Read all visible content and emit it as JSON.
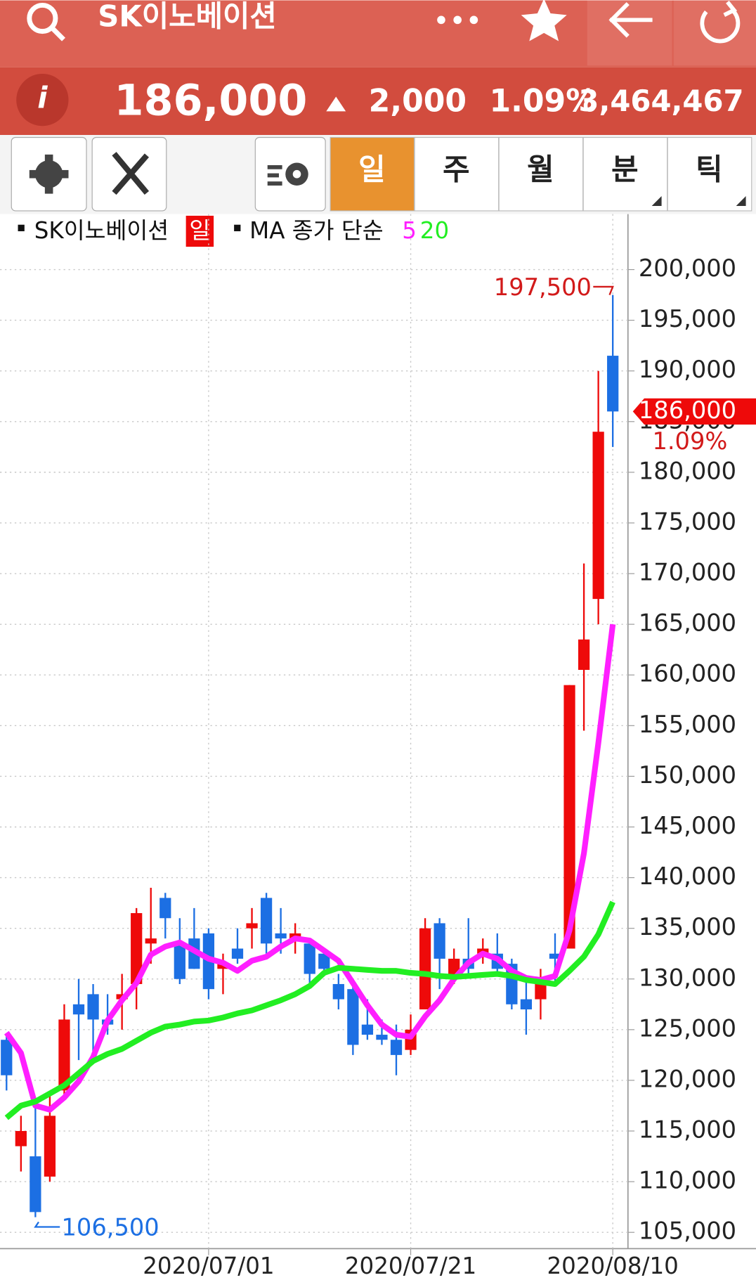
{
  "header": {
    "title": "SK이노베이션",
    "info": "i",
    "price": "186,000",
    "change": "2,000",
    "change_pct": "1.09%",
    "volume": "3,464,467"
  },
  "tabs": [
    "일",
    "주",
    "월",
    "분",
    "틱"
  ],
  "chart_data": {
    "type": "candlestick",
    "legend": {
      "stock": "SK이노베이션",
      "period": "일",
      "ma": "MA 종가 단순"
    },
    "categories": [
      null,
      null,
      null,
      null,
      null,
      null,
      null,
      null,
      null,
      null,
      null,
      null,
      null,
      null,
      "2020/07/01",
      null,
      null,
      null,
      null,
      null,
      null,
      null,
      null,
      null,
      null,
      null,
      null,
      null,
      "2020/07/21",
      null,
      null,
      null,
      null,
      null,
      null,
      null,
      null,
      null,
      null,
      null,
      null,
      null,
      "2020/08/10"
    ],
    "open": [
      124000,
      113500,
      112500,
      110500,
      119000,
      127500,
      128500,
      126000,
      128000,
      129500,
      133500,
      138000,
      133500,
      134000,
      134500,
      131000,
      133000,
      135000,
      138000,
      134500,
      134000,
      133500,
      132500,
      129500,
      129000,
      125500,
      124500,
      124000,
      123000,
      127000,
      135500,
      130000,
      132000,
      132500,
      132500,
      131500,
      128000,
      128000,
      132500,
      133000,
      160500,
      167500,
      191500
    ],
    "high": [
      124500,
      116500,
      118000,
      118500,
      127500,
      130000,
      129500,
      128500,
      130500,
      137000,
      139000,
      138500,
      136000,
      137000,
      135000,
      132500,
      135000,
      137000,
      138500,
      137000,
      135500,
      134000,
      133000,
      130500,
      129500,
      128000,
      126000,
      125500,
      126500,
      136000,
      136000,
      133000,
      136000,
      134000,
      134500,
      132000,
      130000,
      131000,
      134500,
      159000,
      171000,
      190000,
      197500
    ],
    "low": [
      119000,
      111000,
      106500,
      110000,
      118500,
      122000,
      122500,
      124500,
      125000,
      127000,
      131500,
      134000,
      129500,
      131000,
      128000,
      128500,
      131500,
      133000,
      132500,
      132500,
      132500,
      129500,
      130500,
      127000,
      122500,
      124000,
      123500,
      120500,
      122500,
      127000,
      129000,
      129500,
      130500,
      131500,
      130500,
      127000,
      124500,
      126000,
      129500,
      133000,
      154500,
      165000,
      182500
    ],
    "close": [
      120500,
      115000,
      107000,
      116500,
      126000,
      126500,
      126000,
      125500,
      128500,
      136500,
      134000,
      136000,
      130000,
      131000,
      129000,
      131500,
      132000,
      135500,
      133500,
      134000,
      134500,
      130500,
      131000,
      128000,
      123500,
      124500,
      124000,
      122500,
      125000,
      135000,
      132000,
      132000,
      131000,
      133000,
      131000,
      127500,
      127000,
      129500,
      132000,
      159000,
      163500,
      184000,
      186000
    ],
    "up_color": "#ee0a0a",
    "down_color": "#1c6fe3",
    "series": [
      {
        "name": "5",
        "color": "#ff1fff",
        "values": [
          124700,
          122700,
          117500,
          117100,
          118300,
          119900,
          122300,
          125900,
          127900,
          129600,
          132400,
          133200,
          133600,
          132800,
          132000,
          131600,
          130800,
          131800,
          132200,
          133200,
          134000,
          133800,
          132800,
          131800,
          129600,
          127400,
          125500,
          124500,
          124300,
          126300,
          127900,
          130000,
          131600,
          132500,
          132000,
          130800,
          130100,
          129900,
          130300,
          134800,
          142400,
          153300,
          165000
        ]
      },
      {
        "name": "20",
        "color": "#22ee22",
        "values": [
          116300,
          117500,
          117900,
          118700,
          119500,
          120700,
          121900,
          122600,
          123100,
          123900,
          124700,
          125300,
          125500,
          125800,
          125900,
          126200,
          126600,
          126900,
          127400,
          127900,
          128500,
          129300,
          130600,
          131100,
          131000,
          130900,
          130800,
          130800,
          130600,
          130500,
          130300,
          130200,
          130300,
          130400,
          130500,
          130300,
          129900,
          129700,
          129500,
          130800,
          132200,
          134400,
          137600
        ]
      }
    ],
    "ylim": [
      105000,
      200000
    ],
    "yticks": [
      {
        "value": 105000,
        "label": "105,000"
      },
      {
        "value": 110000,
        "label": "110,000"
      },
      {
        "value": 115000,
        "label": "115,000"
      },
      {
        "value": 120000,
        "label": "120,000"
      },
      {
        "value": 125000,
        "label": "125,000"
      },
      {
        "value": 130000,
        "label": "130,000"
      },
      {
        "value": 135000,
        "label": "135,000"
      },
      {
        "value": 140000,
        "label": "140,000"
      },
      {
        "value": 145000,
        "label": "145,000"
      },
      {
        "value": 150000,
        "label": "150,000"
      },
      {
        "value": 155000,
        "label": "155,000"
      },
      {
        "value": 160000,
        "label": "160,000"
      },
      {
        "value": 165000,
        "label": "165,000"
      },
      {
        "value": 170000,
        "label": "170,000"
      },
      {
        "value": 175000,
        "label": "175,000"
      },
      {
        "value": 180000,
        "label": "180,000"
      },
      {
        "value": 185000,
        "label": "185,000"
      },
      {
        "value": 190000,
        "label": "190,000"
      },
      {
        "value": 195000,
        "label": "195,000"
      },
      {
        "value": 200000,
        "label": "200,000"
      }
    ],
    "grid": true,
    "high_label": {
      "value": 197500,
      "label": "197,500"
    },
    "low_label": {
      "value": 106500,
      "label": "106,500"
    },
    "last_label": {
      "value": 186000,
      "label": "186,000"
    },
    "last_change": "1.09%"
  }
}
